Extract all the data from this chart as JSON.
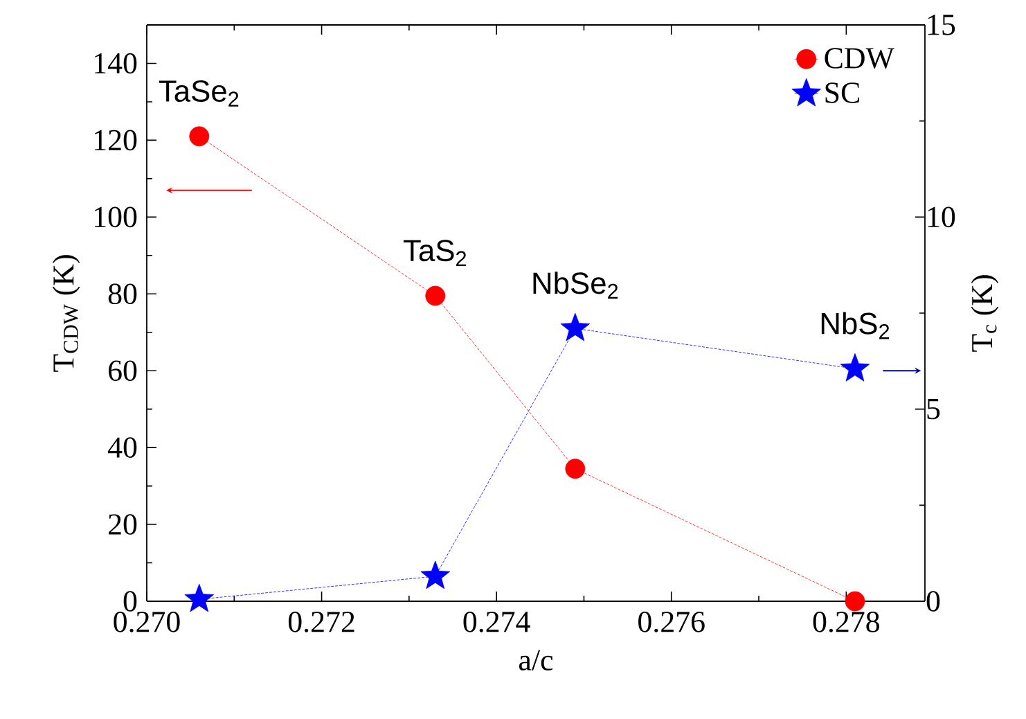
{
  "chart_data": {
    "type": "line",
    "x": [
      0.2706,
      0.2733,
      0.2749,
      0.2781
    ],
    "series": [
      {
        "name": "CDW",
        "color": "#ff0000",
        "marker": "circle",
        "values": [
          121,
          79.5,
          34.5,
          0
        ]
      },
      {
        "name": "SC",
        "color": "#0000ff",
        "marker": "star",
        "axis": "y2",
        "values": [
          0.05,
          0.65,
          7.1,
          6.05
        ]
      }
    ],
    "xlabel": "a/c",
    "ylabel": "T$_{CDW}$ (K)",
    "y2label": "T$_{c}$ (K)",
    "xlim": [
      0.27,
      0.2789
    ],
    "ylim": [
      0,
      150
    ],
    "y2lim": [
      0,
      15
    ],
    "xticks": [
      {
        "value": 0.27,
        "label": "0.270"
      },
      {
        "value": 0.272,
        "label": "0.272"
      },
      {
        "value": 0.274,
        "label": "0.274"
      },
      {
        "value": 0.276,
        "label": "0.276"
      },
      {
        "value": 0.278,
        "label": "0.278"
      }
    ],
    "yticks": [
      0,
      20,
      40,
      60,
      80,
      100,
      120,
      140
    ],
    "y2ticks": [
      0,
      5,
      10,
      15
    ],
    "annotations": [
      {
        "text": "TaSe$_{2}$",
        "x": 0.2706,
        "y": 121
      },
      {
        "text": "TaS$_{2}$",
        "x": 0.2733,
        "y": 79.5
      },
      {
        "text": "NbSe$_{2}$",
        "x": 0.2749,
        "y": 71
      },
      {
        "text": "NbS$_{2}$",
        "x": 0.2781,
        "y": 60.5
      }
    ],
    "legend": "top right",
    "line_style": "dashed",
    "grid": false
  }
}
